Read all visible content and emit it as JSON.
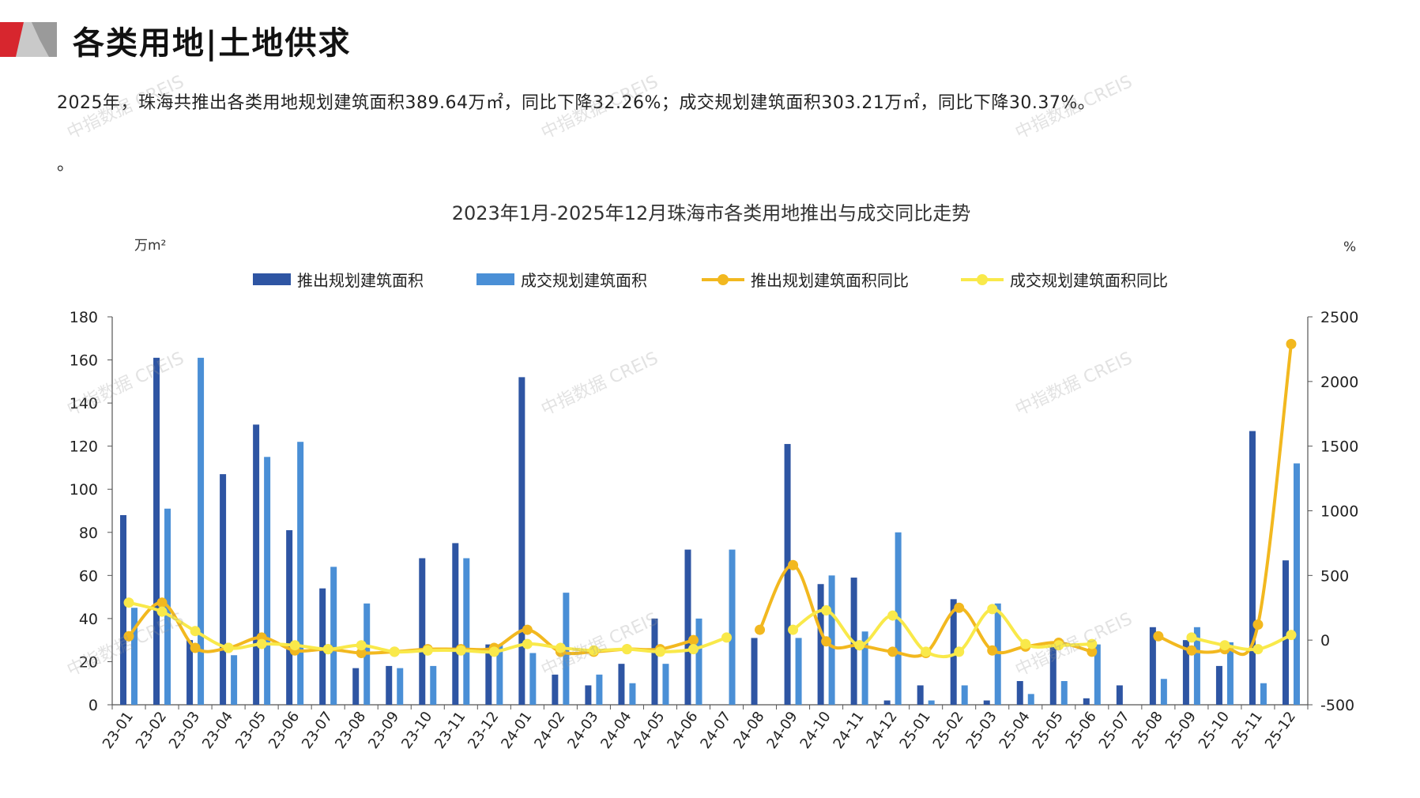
{
  "page": {
    "title": "各类用地|土地供求",
    "summary": "2025年，珠海共推出各类用地规划建筑面积389.64万㎡，同比下降32.26%；成交规划建筑面积303.21万㎡，同比下降30.37%。",
    "dot": "。",
    "watermark": "中指数据 CREIS"
  },
  "colors": {
    "brand_red": "#d7262e",
    "bar_dark": "#2e55a3",
    "bar_light": "#4a8fd6",
    "line_dark": "#f2b81f",
    "line_light": "#f9e94a"
  },
  "chart_data": {
    "type": "bar",
    "title": "2023年1月-2025年12月珠海市各类用地推出与成交同比走势",
    "ylabel": "万m²",
    "y2label": "%",
    "ylim": [
      0,
      180
    ],
    "yticks": [
      0,
      20,
      40,
      60,
      80,
      100,
      120,
      140,
      160,
      180
    ],
    "y2lim": [
      -500,
      2500
    ],
    "y2ticks": [
      -500,
      0,
      500,
      1000,
      1500,
      2000,
      2500
    ],
    "legend_position": "top-center",
    "categories": [
      "23-01",
      "23-02",
      "23-03",
      "23-04",
      "23-05",
      "23-06",
      "23-07",
      "23-08",
      "23-09",
      "23-10",
      "23-11",
      "23-12",
      "24-01",
      "24-02",
      "24-03",
      "24-04",
      "24-05",
      "24-06",
      "24-07",
      "24-08",
      "24-09",
      "24-10",
      "24-11",
      "24-12",
      "25-01",
      "25-02",
      "25-03",
      "25-04",
      "25-05",
      "25-06",
      "25-07",
      "25-08",
      "25-09",
      "25-10",
      "25-11",
      "25-12"
    ],
    "series": [
      {
        "name": "推出规划建筑面积",
        "type": "bar",
        "axis": "left",
        "values": [
          88,
          161,
          30,
          107,
          130,
          81,
          54,
          17,
          18,
          68,
          75,
          28,
          152,
          14,
          9,
          19,
          40,
          72,
          0,
          31,
          121,
          56,
          59,
          2,
          9,
          49,
          2,
          11,
          29,
          3,
          9,
          36,
          30,
          18,
          127,
          67
        ]
      },
      {
        "name": "成交规划建筑面积",
        "type": "bar",
        "axis": "left",
        "values": [
          45,
          91,
          161,
          23,
          115,
          122,
          64,
          47,
          17,
          18,
          68,
          28,
          24,
          52,
          14,
          10,
          19,
          40,
          72,
          0,
          31,
          60,
          34,
          80,
          2,
          9,
          47,
          5,
          11,
          28,
          0,
          12,
          36,
          29,
          10,
          112
        ]
      },
      {
        "name": "推出规划建筑面积同比",
        "type": "line",
        "axis": "right",
        "values": [
          30,
          290,
          -60,
          -60,
          20,
          -80,
          -70,
          -100,
          -90,
          -70,
          -70,
          -60,
          80,
          -90,
          -90,
          -70,
          -70,
          0,
          null,
          80,
          580,
          -10,
          -40,
          -90,
          -100,
          250,
          -80,
          -50,
          -20,
          -90,
          null,
          30,
          -80,
          -70,
          120,
          2290
        ]
      },
      {
        "name": "成交规划建筑面积同比",
        "type": "line",
        "axis": "right",
        "values": [
          290,
          220,
          70,
          -60,
          -30,
          -40,
          -70,
          -40,
          -90,
          -80,
          -80,
          -90,
          -30,
          -60,
          -80,
          -70,
          -90,
          -70,
          20,
          null,
          80,
          230,
          -40,
          190,
          -90,
          -90,
          240,
          -30,
          -40,
          -30,
          null,
          null,
          20,
          -40,
          -70,
          40
        ]
      }
    ]
  }
}
